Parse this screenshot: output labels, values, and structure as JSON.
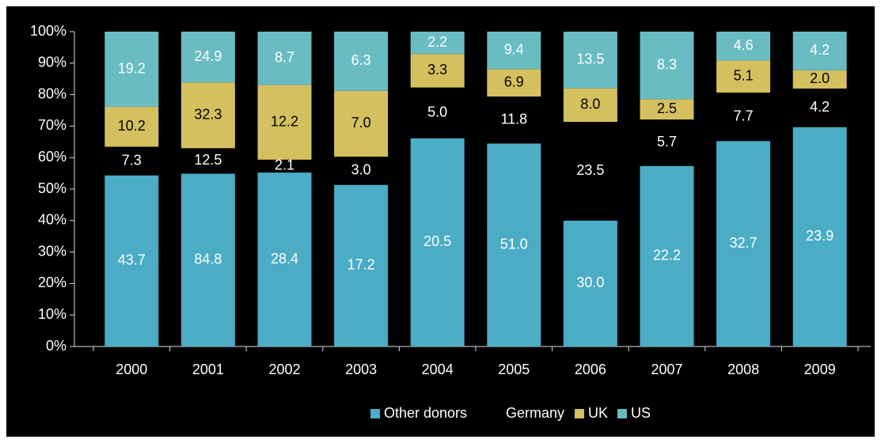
{
  "chart_data": {
    "type": "bar",
    "stacking": "percent",
    "categories": [
      "2000",
      "2001",
      "2002",
      "2003",
      "2004",
      "2005",
      "2006",
      "2007",
      "2008",
      "2009"
    ],
    "series": [
      {
        "name": "Other donors",
        "color": "#4bacc6",
        "label_color": "#ffffff",
        "values": [
          43.7,
          84.8,
          28.4,
          17.2,
          20.5,
          51.0,
          30.0,
          22.2,
          32.7,
          23.9
        ],
        "value_labels": [
          "43.7",
          "84.8",
          "28.4",
          "17.2",
          "20.5",
          "51.0",
          "30.0",
          "22.2",
          "32.7",
          "23.9"
        ]
      },
      {
        "name": "Germany",
        "color": "#000000",
        "label_color": "#ffffff",
        "values": [
          7.3,
          12.5,
          2.1,
          3.0,
          5.0,
          11.8,
          23.5,
          5.7,
          7.7,
          4.2
        ],
        "value_labels": [
          "7.3",
          "12.5",
          "2.1",
          "3.0",
          "5.0",
          "11.8",
          "23.5",
          "5.7",
          "7.7",
          "4.2"
        ]
      },
      {
        "name": "UK",
        "color": "#d4c05e",
        "label_color": "#000000",
        "values": [
          10.2,
          32.3,
          12.2,
          7.0,
          3.3,
          6.9,
          8.0,
          2.5,
          5.1,
          2.0
        ],
        "value_labels": [
          "10.2",
          "32.3",
          "12.2",
          "7.0",
          "3.3",
          "6.9",
          "8.0",
          "2.5",
          "5.1",
          "2.0"
        ]
      },
      {
        "name": "US",
        "color": "#68bcc2",
        "label_color": "#ffffff",
        "values": [
          19.2,
          24.9,
          8.7,
          6.3,
          2.2,
          9.4,
          13.5,
          8.3,
          4.6,
          4.2
        ],
        "value_labels": [
          "19.2",
          "24.9",
          "8.7",
          "6.3",
          "2.2",
          "9.4",
          "13.5",
          "8.3",
          "4.6",
          "4.2"
        ]
      }
    ],
    "ylim": [
      0,
      100
    ],
    "yticks": [
      {
        "value": 0,
        "label": "0%"
      },
      {
        "value": 10,
        "label": "10%"
      },
      {
        "value": 20,
        "label": "20%"
      },
      {
        "value": 30,
        "label": "30%"
      },
      {
        "value": 40,
        "label": "40%"
      },
      {
        "value": 50,
        "label": "50%"
      },
      {
        "value": 60,
        "label": "60%"
      },
      {
        "value": 70,
        "label": "70%"
      },
      {
        "value": 80,
        "label": "80%"
      },
      {
        "value": 90,
        "label": "90%"
      },
      {
        "value": 100,
        "label": "100%"
      }
    ],
    "legend": "bottom"
  }
}
